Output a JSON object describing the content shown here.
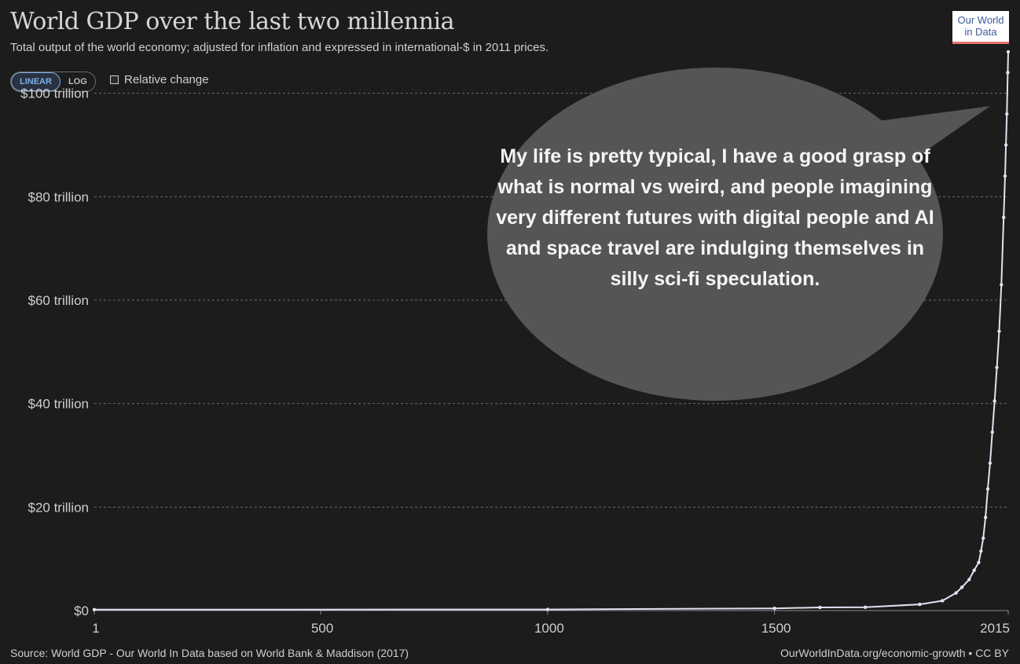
{
  "header": {
    "title": "World GDP over the last two millennia",
    "subtitle": "Total output of the world economy; adjusted for inflation and expressed in international-$ in 2011 prices."
  },
  "logo": {
    "line1": "Our World",
    "line2": "in Data"
  },
  "controls": {
    "linear_label": "LINEAR",
    "log_label": "LOG",
    "relative_change_label": "Relative change"
  },
  "speech_bubble": {
    "text": "My life is pretty typical, I have a good grasp of what is normal vs weird, and people imagining very different futures with digital people and AI and space travel are indulging themselves in silly sci-fi speculation."
  },
  "footer": {
    "source": "Source: World GDP - Our World In Data based on World Bank & Maddison (2017)",
    "url": "OurWorldInData.org/economic-growth • CC BY"
  },
  "colors": {
    "background": "#1c1c1c",
    "line": "#dde3f0",
    "bubble": "#555555",
    "grid": "#6a6a6a"
  },
  "chart_data": {
    "type": "line",
    "title": "World GDP over the last two millennia",
    "xlabel": "",
    "ylabel": "",
    "xlim": [
      1,
      2015
    ],
    "ylim": [
      0,
      108
    ],
    "y_unit": "trillion international-$ (2011 prices)",
    "x_ticks": [
      1,
      500,
      1000,
      1500,
      2015
    ],
    "x_tick_labels": [
      "1",
      "500",
      "1000",
      "1500",
      "2015"
    ],
    "y_ticks": [
      0,
      20,
      40,
      60,
      80,
      100
    ],
    "y_tick_labels": [
      "$0",
      "$20 trillion",
      "$40 trillion",
      "$60 trillion",
      "$80 trillion",
      "$100 trillion"
    ],
    "grid": true,
    "series": [
      {
        "name": "World GDP",
        "x": [
          1,
          1000,
          1500,
          1600,
          1700,
          1820,
          1870,
          1900,
          1913,
          1929,
          1940,
          1950,
          1955,
          1960,
          1965,
          1970,
          1975,
          1980,
          1985,
          1990,
          1995,
          2000,
          2005,
          2008,
          2010,
          2012,
          2014,
          2015
        ],
        "values": [
          0.18,
          0.21,
          0.43,
          0.6,
          0.64,
          1.2,
          1.9,
          3.4,
          4.5,
          6.0,
          7.8,
          9.3,
          11.5,
          14.0,
          18.0,
          23.5,
          28.5,
          34.5,
          40.5,
          47.0,
          54.0,
          63.0,
          76.0,
          84.0,
          90.0,
          96.0,
          104.0,
          108.0
        ]
      }
    ]
  }
}
